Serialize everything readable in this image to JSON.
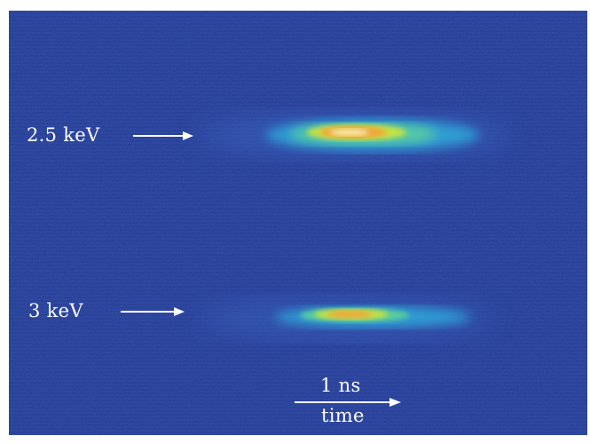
{
  "figure": {
    "colors": {
      "background": "#233c95",
      "annotation": "#ffffff",
      "signal_core": "#f6f0b0",
      "signal_mid": "#f2a23a",
      "signal_low": "#9bdc4a",
      "signal_halo": "#28c7e6"
    },
    "labels": {
      "upper_energy": "2.5 keV",
      "lower_energy": "3 keV",
      "scale_value": "1 ns",
      "time_axis": "time"
    }
  }
}
